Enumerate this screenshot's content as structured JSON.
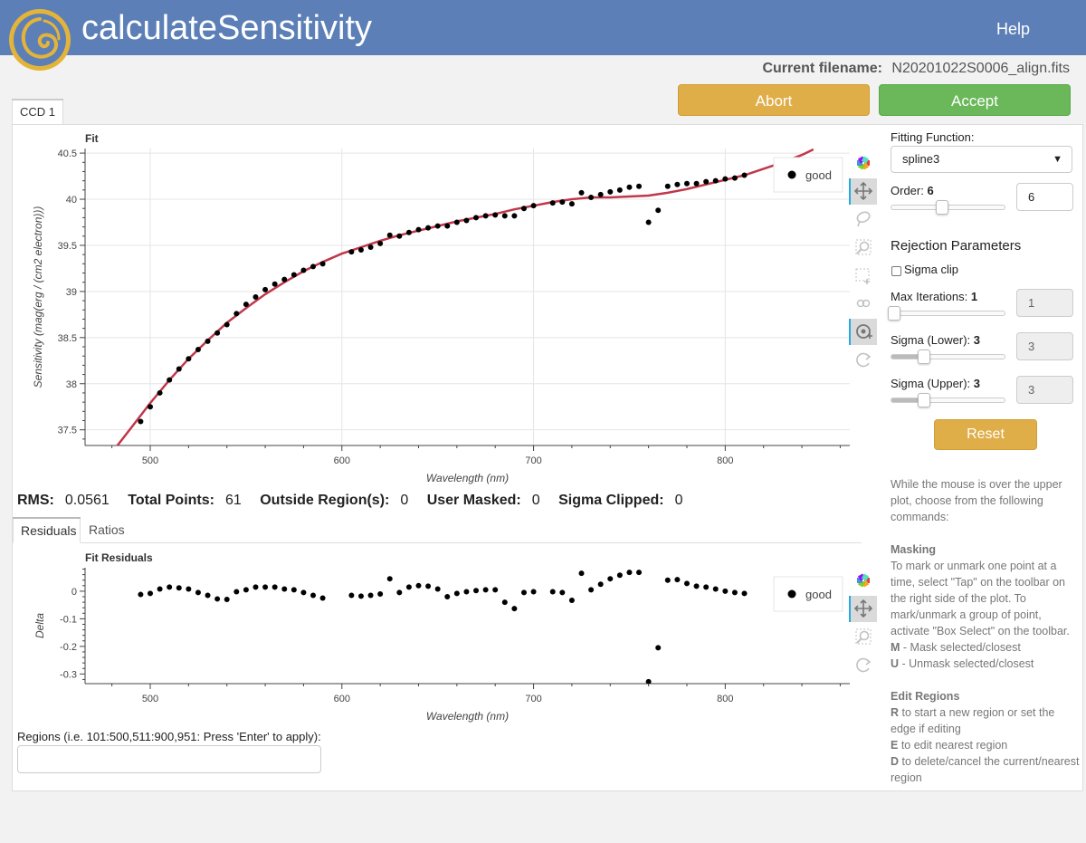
{
  "app": {
    "title": "calculateSensitivity",
    "help_label": "Help"
  },
  "file": {
    "label": "Current filename:",
    "name": "N20201022S0006_align.fits"
  },
  "buttons": {
    "abort": "Abort",
    "accept": "Accept",
    "reset": "Reset"
  },
  "tabs": {
    "ccd": "CCD 1",
    "residuals": "Residuals",
    "ratios": "Ratios"
  },
  "colors": {
    "header": "#5b7fb6",
    "abort": "#e0ae48",
    "accept": "#6ab85a",
    "fit_line": "#c0374b"
  },
  "stats": {
    "rms_label": "RMS:",
    "rms": "0.0561",
    "total_label": "Total Points:",
    "total": "61",
    "outside_label": "Outside Region(s):",
    "outside": "0",
    "masked_label": "User Masked:",
    "masked": "0",
    "clipped_label": "Sigma Clipped:",
    "clipped": "0"
  },
  "regions": {
    "label": "Regions (i.e. 101:500,511:900,951: Press 'Enter' to apply):",
    "value": ""
  },
  "controls": {
    "fitting_label": "Fitting Function:",
    "fitting_value": "spline3",
    "order_label": "Order:",
    "order_value": "6",
    "rejection_title": "Rejection Parameters",
    "sigma_clip_label": "Sigma clip",
    "max_iter_label": "Max Iterations:",
    "max_iter_value": "1",
    "sigma_lower_label": "Sigma (Lower):",
    "sigma_lower_value": "3",
    "sigma_upper_label": "Sigma (Upper):",
    "sigma_upper_value": "3",
    "order_level": 0.3,
    "max_iter_level": 0.0,
    "sigma_lower_level": 0.3,
    "sigma_upper_level": 0.3
  },
  "help": {
    "intro": "While the mouse is over the upper plot, choose from the following commands:",
    "masking_title": "Masking",
    "masking_text": "To mark or unmark one point at a time, select \"Tap\" on the toolbar on the right side of the plot. To mark/unmark a group of point, activate \"Box Select\" on the toolbar.",
    "m_key": "M",
    "m_text": " - Mask selected/closest",
    "u_key": "U",
    "u_text": " - Unmask selected/closest",
    "edit_title": "Edit Regions",
    "r_key": "R",
    "r_text": " to start a new region or set the edge if editing",
    "e_key": "E",
    "e_text": " to edit nearest region",
    "d_key": "D",
    "d_text": " to delete/cancel the current/nearest region"
  },
  "toolbar_icons": [
    "bokeh-logo-icon",
    "pan-icon",
    "lasso-select-icon",
    "box-zoom-icon",
    "box-select-icon",
    "tap-icon",
    "crosshair-icon",
    "reset-icon"
  ],
  "chart_data": [
    {
      "type": "scatter",
      "title": "Fit",
      "xlabel": "Wavelength (nm)",
      "ylabel": "Sensitivity (mag(erg / (cm2 electron)))",
      "xlim": [
        466,
        865
      ],
      "ylim": [
        37.33,
        40.55
      ],
      "x_ticks": [
        500,
        600,
        700,
        800
      ],
      "y_ticks": [
        37.5,
        38,
        38.5,
        39,
        39.5,
        40,
        40.5
      ],
      "legend": {
        "entries": [
          "good"
        ],
        "position": "top-right"
      },
      "grid": true,
      "series": [
        {
          "name": "good",
          "x": [
            495,
            500,
            505,
            510,
            515,
            520,
            525,
            530,
            535,
            540,
            545,
            550,
            555,
            560,
            565,
            570,
            575,
            580,
            585,
            590,
            605,
            610,
            615,
            620,
            625,
            630,
            635,
            640,
            645,
            650,
            655,
            660,
            665,
            670,
            675,
            680,
            685,
            690,
            695,
            700,
            710,
            715,
            720,
            725,
            730,
            735,
            740,
            745,
            750,
            755,
            760,
            765,
            770,
            775,
            780,
            785,
            790,
            795,
            800,
            805,
            810
          ],
          "y": [
            37.59,
            37.75,
            37.9,
            38.04,
            38.16,
            38.27,
            38.37,
            38.46,
            38.55,
            38.64,
            38.76,
            38.86,
            38.94,
            39.02,
            39.08,
            39.13,
            39.18,
            39.23,
            39.27,
            39.3,
            39.43,
            39.45,
            39.48,
            39.52,
            39.61,
            39.6,
            39.64,
            39.67,
            39.69,
            39.71,
            39.71,
            39.75,
            39.77,
            39.8,
            39.82,
            39.83,
            39.82,
            39.82,
            39.9,
            39.93,
            39.96,
            39.97,
            39.95,
            40.07,
            40.02,
            40.05,
            40.08,
            40.1,
            40.13,
            40.14,
            39.75,
            39.88,
            40.14,
            40.16,
            40.17,
            40.17,
            40.19,
            40.2,
            40.22,
            40.23,
            40.26
          ]
        }
      ],
      "fit_curve": {
        "x": [
          481,
          490,
          500,
          510,
          520,
          530,
          540,
          550,
          560,
          570,
          580,
          590,
          600,
          610,
          620,
          630,
          640,
          650,
          660,
          670,
          680,
          690,
          700,
          710,
          720,
          730,
          740,
          750,
          760,
          770,
          780,
          790,
          800,
          810,
          820,
          830,
          840,
          846
        ],
        "y": [
          37.28,
          37.52,
          37.79,
          38.04,
          38.27,
          38.47,
          38.66,
          38.82,
          38.97,
          39.1,
          39.22,
          39.32,
          39.41,
          39.48,
          39.55,
          39.61,
          39.66,
          39.71,
          39.76,
          39.8,
          39.84,
          39.89,
          39.93,
          39.97,
          40.0,
          40.02,
          40.02,
          40.03,
          40.04,
          40.07,
          40.11,
          40.16,
          40.21,
          40.26,
          40.33,
          40.4,
          40.48,
          40.54
        ]
      }
    },
    {
      "type": "scatter",
      "title": "Fit Residuals",
      "xlabel": "Wavelength (nm)",
      "ylabel": "Delta",
      "xlim": [
        466,
        865
      ],
      "ylim": [
        -0.335,
        0.085
      ],
      "x_ticks": [
        500,
        600,
        700,
        800
      ],
      "y_ticks": [
        0,
        -0.1,
        -0.2,
        -0.3
      ],
      "legend": {
        "entries": [
          "good"
        ],
        "position": "top-right"
      },
      "grid": false,
      "series": [
        {
          "name": "good",
          "x": [
            495,
            500,
            505,
            510,
            515,
            520,
            525,
            530,
            535,
            540,
            545,
            550,
            555,
            560,
            565,
            570,
            575,
            580,
            585,
            590,
            605,
            610,
            615,
            620,
            625,
            630,
            635,
            640,
            645,
            650,
            655,
            660,
            665,
            670,
            675,
            680,
            685,
            690,
            695,
            700,
            710,
            715,
            720,
            725,
            730,
            735,
            740,
            745,
            750,
            755,
            760,
            765,
            770,
            775,
            780,
            785,
            790,
            795,
            800,
            805,
            810
          ],
          "y": [
            -0.012,
            -0.008,
            0.008,
            0.015,
            0.012,
            0.008,
            -0.005,
            -0.015,
            -0.028,
            -0.03,
            -0.002,
            0.005,
            0.015,
            0.015,
            0.015,
            0.008,
            0.005,
            -0.005,
            -0.015,
            -0.025,
            -0.015,
            -0.018,
            -0.015,
            -0.01,
            0.045,
            -0.005,
            0.015,
            0.02,
            0.018,
            0.008,
            -0.02,
            -0.008,
            -0.002,
            0.002,
            0.005,
            0.005,
            -0.04,
            -0.063,
            -0.005,
            -0.002,
            -0.002,
            -0.005,
            -0.033,
            0.065,
            0.005,
            0.025,
            0.045,
            0.058,
            0.068,
            0.068,
            -0.328,
            -0.205,
            0.04,
            0.042,
            0.028,
            0.018,
            0.015,
            0.008,
            0.0,
            -0.005,
            -0.008
          ]
        }
      ]
    }
  ]
}
